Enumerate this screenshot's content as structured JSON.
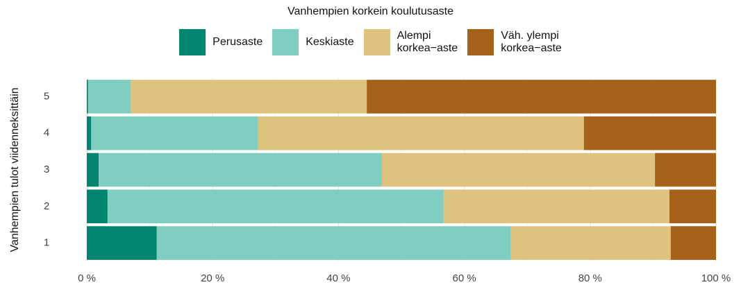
{
  "chart_data": {
    "type": "stacked_barh",
    "legend_title": "Vanhempien korkein koulutusaste",
    "ylabel": "Vanhempien tulot viidenneksittäin",
    "categories": [
      "1",
      "2",
      "3",
      "4",
      "5"
    ],
    "series": [
      {
        "name": "Perusaste",
        "color": "#018571",
        "values": [
          11.1,
          3.3,
          1.9,
          0.7,
          0.2
        ]
      },
      {
        "name": "Keskiaste",
        "color": "#80cdc1",
        "values": [
          56.3,
          53.4,
          45.0,
          26.5,
          6.8
        ]
      },
      {
        "name": "Alempi\nkorkea−aste",
        "color": "#dfc27d",
        "values": [
          25.4,
          35.9,
          43.4,
          51.8,
          37.5
        ]
      },
      {
        "name": "Väh. ylempi\nkorkea−aste",
        "color": "#a6611a",
        "values": [
          7.2,
          7.4,
          9.7,
          21.0,
          55.5
        ]
      }
    ],
    "xlim": [
      0,
      100
    ],
    "xticks": [
      {
        "value": 0,
        "label": "0 %"
      },
      {
        "value": 20,
        "label": "20 %"
      },
      {
        "value": 40,
        "label": "40 %"
      },
      {
        "value": 60,
        "label": "60 %"
      },
      {
        "value": 80,
        "label": "80 %"
      },
      {
        "value": 100,
        "label": "100 %"
      }
    ],
    "xminor": [
      10,
      30,
      50,
      70,
      90
    ],
    "grid": true,
    "legend": "top"
  }
}
